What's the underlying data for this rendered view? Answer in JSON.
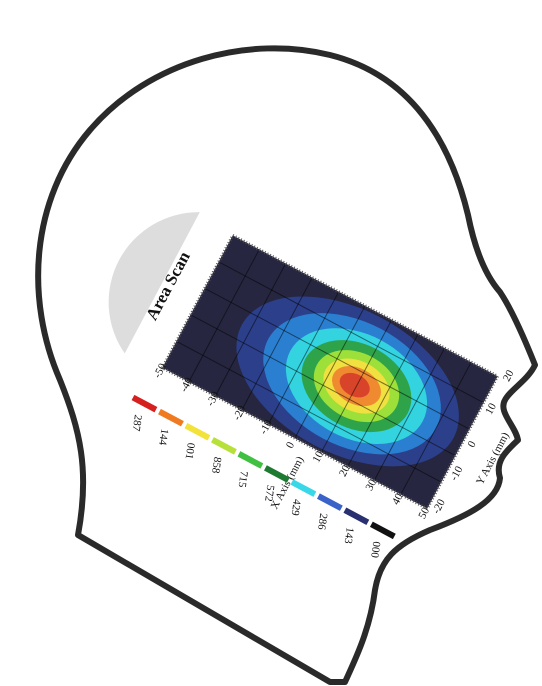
{
  "title": "Area Scan",
  "x_axis": {
    "label": "X Axis (mm)",
    "ticks": [
      "-50",
      "-40",
      "-30",
      "-20",
      "-10",
      "0",
      "10",
      "20",
      "30",
      "40",
      "50"
    ]
  },
  "y_axis": {
    "label": "Y Axis (mm)",
    "ticks": [
      "-20",
      "-10",
      "0",
      "10",
      "20"
    ]
  },
  "legend": {
    "labels": [
      "287",
      "144",
      "001",
      "858",
      "715",
      "572",
      "429",
      "286",
      "143",
      "000"
    ]
  }
}
